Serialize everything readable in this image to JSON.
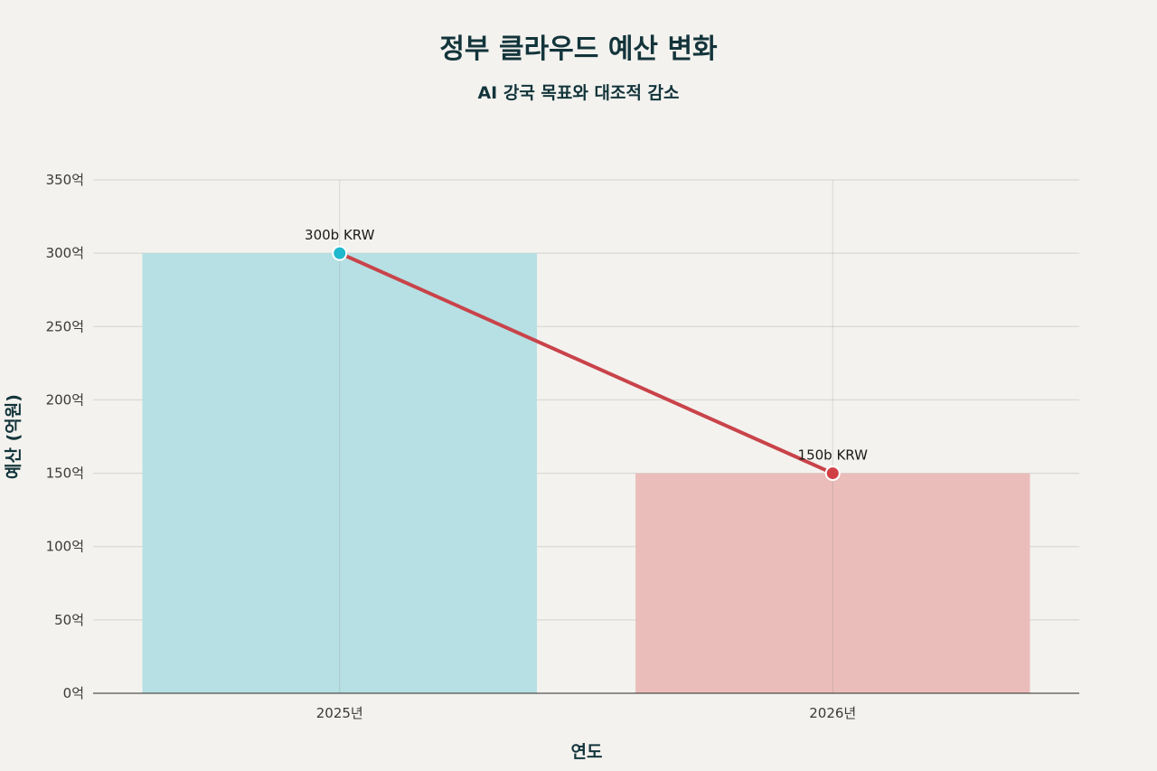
{
  "chart_data": {
    "type": "bar",
    "title": "정부 클라우드 예산 변화",
    "subtitle": "AI 강국 목표와 대조적 감소",
    "xlabel": "연도",
    "ylabel": "예산 (억원)",
    "categories": [
      "2025년",
      "2026년"
    ],
    "values": [
      300,
      150
    ],
    "data_labels": [
      "300b KRW",
      "150b KRW"
    ],
    "ylim": [
      0,
      350
    ],
    "yticks": [
      0,
      50,
      100,
      150,
      200,
      250,
      300,
      350
    ],
    "ytick_suffix": "억",
    "bar_colors": [
      "#b6e0e3",
      "#eabdbb"
    ],
    "marker_colors": [
      "#1fb8cd",
      "#d13f45"
    ],
    "line_color": "#c9434a",
    "overlay": "line connecting bar tops",
    "grid": true,
    "legend": "none"
  }
}
